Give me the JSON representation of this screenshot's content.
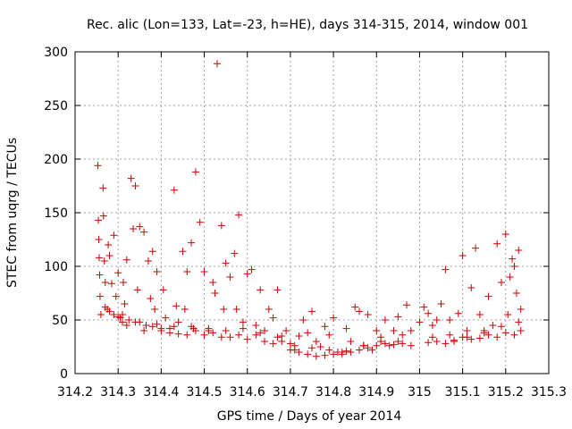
{
  "chart_data": {
    "type": "scatter",
    "title": "Rec. alic (Lon=133, Lat=-23, h=HE), days 314-315, 2014, window 001",
    "xlabel": "GPS time / Days of year 2014",
    "ylabel": "STEC from uqrg / TECUs",
    "xlim": [
      314.2,
      315.3
    ],
    "ylim": [
      0,
      300
    ],
    "xticks": [
      "314.2",
      "314.3",
      "314.4",
      "314.5",
      "314.6",
      "314.7",
      "314.8",
      "314.9",
      "315",
      "315.1",
      "315.2",
      "315.3"
    ],
    "yticks": [
      "0",
      "50",
      "100",
      "150",
      "200",
      "250",
      "300"
    ],
    "grid": true,
    "marker": "plus",
    "color": "#cc0000",
    "series": [
      {
        "x": [
          314.253,
          314.254,
          314.255,
          314.256,
          314.257,
          314.258,
          314.265,
          314.266,
          314.268,
          314.27,
          314.275,
          314.277,
          314.28,
          314.285,
          314.29,
          314.29,
          314.295,
          314.3,
          314.305,
          314.31,
          314.312,
          314.315,
          314.32,
          314.325,
          314.33,
          314.335,
          314.34,
          314.345,
          314.35,
          314.36,
          314.365,
          314.37,
          314.375,
          314.38,
          314.385,
          314.39,
          314.4,
          314.405,
          314.41,
          314.42,
          314.43,
          314.435,
          314.44,
          314.45,
          314.455,
          314.46,
          314.47,
          314.475,
          314.48,
          314.49,
          314.5,
          314.51,
          314.52,
          314.525,
          314.53,
          314.54,
          314.545,
          314.55,
          314.56,
          314.57,
          314.575,
          314.58,
          314.59,
          314.6,
          314.61,
          314.62,
          314.63,
          314.64,
          314.65,
          314.66,
          314.67,
          314.68,
          314.69,
          314.7,
          314.71,
          314.72,
          314.73,
          314.74,
          314.75,
          314.76,
          314.77,
          314.78,
          314.79,
          314.8,
          314.81,
          314.82,
          314.83,
          314.84,
          314.85,
          314.86,
          314.87,
          314.88,
          314.89,
          314.9,
          314.91,
          314.92,
          314.93,
          314.94,
          314.95,
          314.96,
          314.97,
          314.98,
          315.0,
          315.01,
          315.02,
          315.03,
          315.04,
          315.05,
          315.06,
          315.07,
          315.08,
          315.09,
          315.1,
          315.11,
          315.12,
          315.13,
          315.14,
          315.15,
          315.16,
          315.17,
          315.18,
          315.19,
          315.2,
          315.205,
          315.21,
          315.215,
          315.22,
          315.225,
          315.23,
          315.235,
          314.26,
          314.28,
          314.3,
          314.32,
          314.34,
          314.36,
          314.38,
          314.4,
          314.42,
          314.44,
          314.46,
          314.48,
          314.5,
          314.52,
          314.54,
          314.56,
          314.58,
          314.6,
          314.62,
          314.64,
          314.66,
          314.68,
          314.7,
          314.72,
          314.74,
          314.76,
          314.78,
          314.8,
          314.82,
          314.84,
          314.86,
          314.88,
          314.9,
          314.92,
          314.94,
          314.96,
          314.98,
          315.02,
          315.04,
          315.06,
          315.08,
          315.1,
          315.12,
          315.14,
          315.16,
          315.18,
          315.2,
          315.22,
          315.235,
          314.27,
          314.31,
          314.35,
          314.39,
          314.43,
          314.47,
          314.51,
          314.55,
          314.59,
          314.63,
          314.67,
          314.71,
          314.75,
          314.79,
          314.83,
          314.87,
          314.91,
          314.95,
          315.03,
          315.07,
          315.11,
          315.15,
          315.19,
          315.23
        ],
        "y": [
          194,
          143,
          125,
          108,
          92,
          72,
          173,
          147,
          105,
          85,
          60,
          120,
          110,
          84,
          129,
          55,
          72,
          94,
          52,
          48,
          85,
          65,
          106,
          50,
          182,
          135,
          175,
          78,
          137,
          132,
          45,
          105,
          70,
          114,
          60,
          95,
          40,
          78,
          52,
          42,
          171,
          63,
          48,
          114,
          60,
          95,
          122,
          42,
          188,
          141,
          95,
          40,
          85,
          75,
          289,
          138,
          60,
          103,
          90,
          112,
          60,
          148,
          48,
          93,
          97,
          45,
          78,
          40,
          60,
          52,
          78,
          35,
          40,
          28,
          22,
          35,
          50,
          38,
          58,
          30,
          25,
          44,
          36,
          52,
          20,
          18,
          42,
          30,
          62,
          58,
          26,
          55,
          22,
          40,
          34,
          50,
          26,
          40,
          53,
          36,
          64,
          40,
          48,
          62,
          56,
          45,
          50,
          65,
          97,
          50,
          30,
          56,
          110,
          40,
          80,
          117,
          55,
          38,
          72,
          45,
          121,
          85,
          130,
          55,
          90,
          107,
          100,
          75,
          115,
          60,
          55,
          58,
          53,
          45,
          48,
          40,
          44,
          42,
          38,
          37,
          36,
          40,
          36,
          38,
          34,
          34,
          36,
          32,
          36,
          30,
          28,
          30,
          22,
          20,
          18,
          16,
          17,
          18,
          20,
          20,
          22,
          24,
          26,
          28,
          27,
          28,
          26,
          29,
          30,
          28,
          31,
          34,
          32,
          33,
          36,
          34,
          38,
          36,
          40,
          62,
          55,
          48,
          46,
          44,
          44,
          42,
          40,
          42,
          38,
          34,
          26,
          24,
          22,
          21,
          26,
          30,
          30,
          34,
          36,
          34,
          40,
          44,
          48
        ]
      }
    ]
  }
}
